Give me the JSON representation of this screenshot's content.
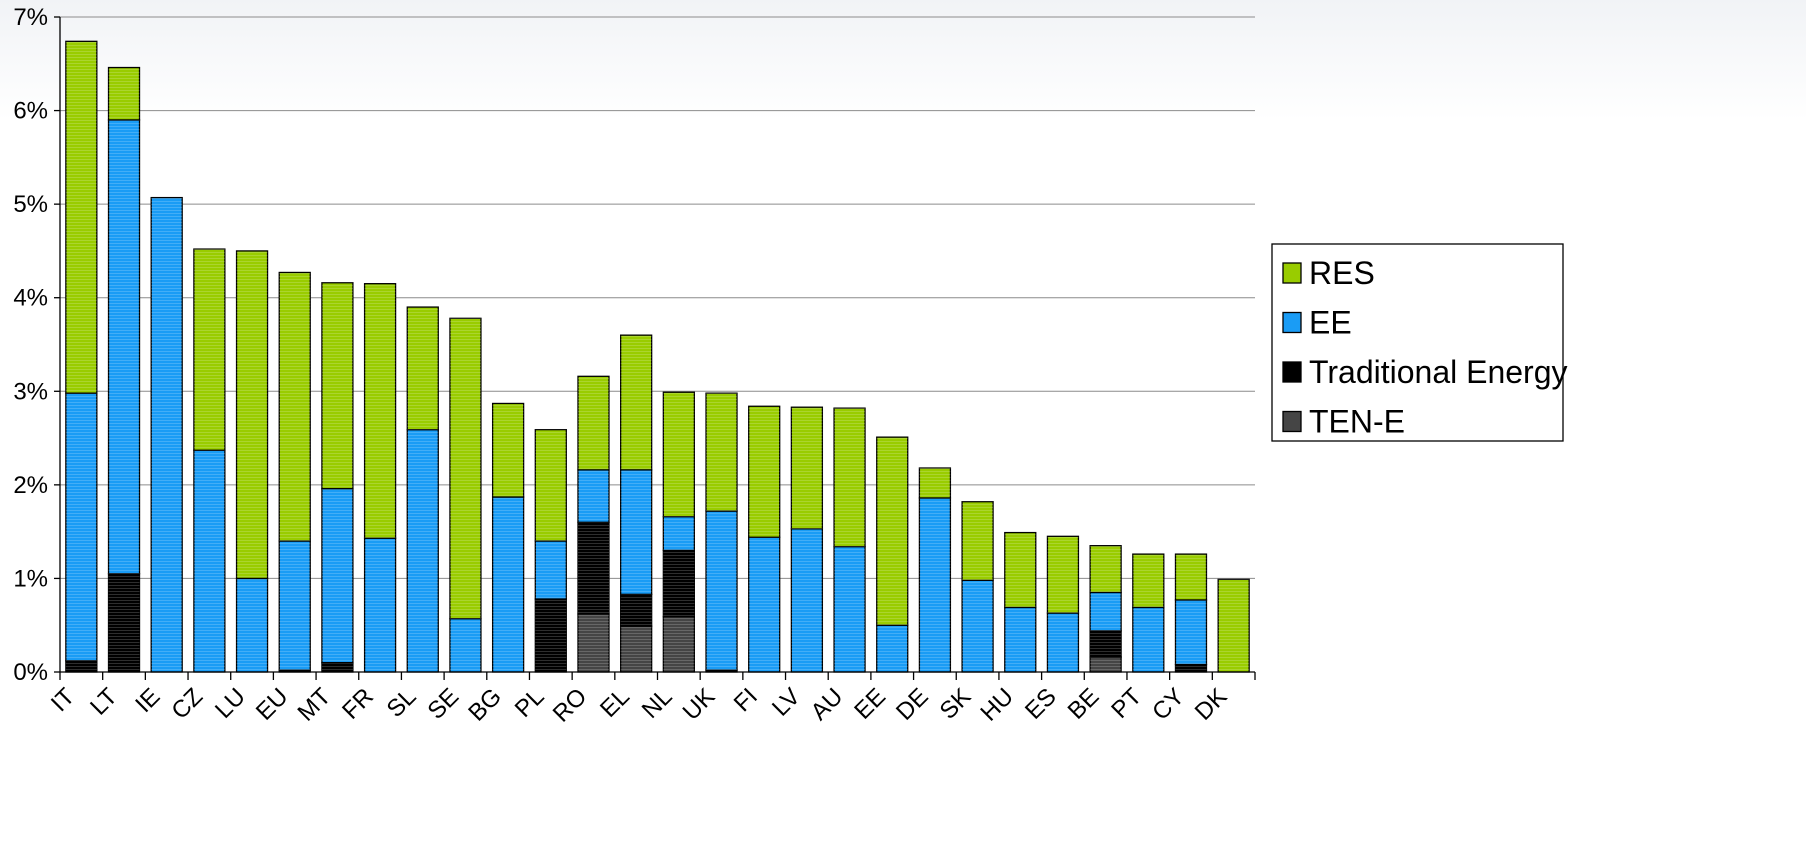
{
  "chart_data": {
    "type": "bar",
    "stacked": true,
    "categories": [
      "IT",
      "LT",
      "IE",
      "CZ",
      "LU",
      "EU",
      "MT",
      "FR",
      "SL",
      "SE",
      "BG",
      "PL",
      "RO",
      "EL",
      "NL",
      "UK",
      "FI",
      "LV",
      "AU",
      "EE",
      "DE",
      "SK",
      "HU",
      "ES",
      "BE",
      "PT",
      "CY",
      "DK"
    ],
    "series": [
      {
        "name": "TEN-E",
        "color": "#454545",
        "values": [
          0,
          0,
          0,
          0,
          0,
          0,
          0,
          0,
          0,
          0,
          0,
          0,
          0.62,
          0.49,
          0.59,
          0,
          0,
          0,
          0,
          0,
          0,
          0,
          0,
          0,
          0.16,
          0,
          0,
          0
        ]
      },
      {
        "name": "Traditional Energy",
        "color": "#000000",
        "values": [
          0.12,
          1.05,
          0,
          0,
          0,
          0.02,
          0.1,
          0,
          0,
          0,
          0,
          0.78,
          0.98,
          0.34,
          0.71,
          0.02,
          0,
          0,
          0,
          0,
          0,
          0,
          0,
          0,
          0.28,
          0,
          0.08,
          0
        ]
      },
      {
        "name": "EE",
        "color": "#1a9cf5",
        "values": [
          2.86,
          4.85,
          5.07,
          2.37,
          1.0,
          1.38,
          1.86,
          1.43,
          2.59,
          0.57,
          1.87,
          0.62,
          0.56,
          1.33,
          0.36,
          1.7,
          1.44,
          1.53,
          1.34,
          0.5,
          1.86,
          0.98,
          0.69,
          0.63,
          0.41,
          0.69,
          0.69,
          0
        ]
      },
      {
        "name": "RES",
        "color": "#99cc00",
        "values": [
          3.76,
          0.56,
          0,
          2.15,
          3.5,
          2.87,
          2.2,
          2.72,
          1.31,
          3.21,
          1.0,
          1.19,
          1.0,
          1.44,
          1.33,
          1.26,
          1.4,
          1.3,
          1.48,
          2.01,
          0.32,
          0.84,
          0.8,
          0.82,
          0.5,
          0.57,
          0.49,
          0.99
        ]
      }
    ],
    "legend": [
      "RES",
      "EE",
      "Traditional Energy",
      "TEN-E"
    ],
    "legend_position": "right",
    "ylim": [
      0,
      7
    ],
    "yticks": [
      "0%",
      "1%",
      "2%",
      "3%",
      "4%",
      "5%",
      "6%",
      "7%"
    ],
    "grid": true,
    "title": "",
    "xlabel": "",
    "ylabel": ""
  }
}
